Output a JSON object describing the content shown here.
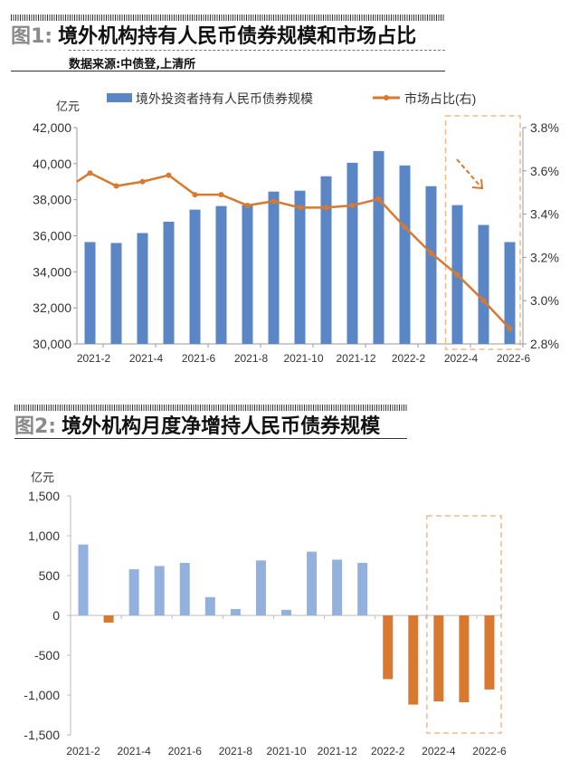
{
  "figure1": {
    "label": "图1:",
    "title": "境外机构持有人民币债券规模和市场占比",
    "source": "数据来源:中债登,上清所"
  },
  "figure2": {
    "label": "图2:",
    "title": "境外机构月度净增持人民币债券规模"
  },
  "colors": {
    "bar_blue": "#5b86c5",
    "line_orange": "#d9782f",
    "bar_light_blue": "#92b1dc",
    "bar_orange": "#d9782f",
    "highlight_box": "#f2b98a"
  },
  "chart_data": [
    {
      "type": "bar+line",
      "title": "境外机构持有人民币债券规模和市场占比",
      "ylabel": "亿元",
      "categories": [
        "2021-2",
        "2021-3",
        "2021-4",
        "2021-5",
        "2021-6",
        "2021-7",
        "2021-8",
        "2021-9",
        "2021-10",
        "2021-11",
        "2021-12",
        "2022-1",
        "2022-2",
        "2022-3",
        "2022-4",
        "2022-5",
        "2022-6"
      ],
      "xtick_labels": [
        "2021-2",
        "2021-4",
        "2021-6",
        "2021-8",
        "2021-10",
        "2021-12",
        "2022-2",
        "2022-4",
        "2022-6"
      ],
      "ylim": [
        30000,
        42000
      ],
      "yticks": [
        "30,000",
        "32,000",
        "34,000",
        "36,000",
        "38,000",
        "40,000",
        "42,000"
      ],
      "y2lim": [
        2.8,
        3.8
      ],
      "y2ticks": [
        "2.8%",
        "3.0%",
        "3.2%",
        "3.4%",
        "3.6%",
        "3.8%"
      ],
      "series": [
        {
          "name": "境外投资者持有人民币债券规模",
          "type": "bar",
          "axis": "left",
          "values": [
            35650,
            35600,
            36150,
            36780,
            37450,
            37650,
            37700,
            38450,
            38500,
            39300,
            40050,
            40700,
            39900,
            38750,
            37700,
            36600,
            35650
          ]
        },
        {
          "name": "市场占比(右)",
          "type": "line",
          "axis": "right",
          "values": [
            3.59,
            3.53,
            3.55,
            3.58,
            3.49,
            3.49,
            3.44,
            3.46,
            3.43,
            3.43,
            3.44,
            3.47,
            3.34,
            3.22,
            3.12,
            3.0,
            2.87
          ]
        }
      ],
      "legend": "top",
      "highlight": [
        "2022-4",
        "2022-6"
      ]
    },
    {
      "type": "bar",
      "title": "境外机构月度净增持人民币债券规模",
      "ylabel": "亿元",
      "categories": [
        "2021-2",
        "2021-3",
        "2021-4",
        "2021-5",
        "2021-6",
        "2021-7",
        "2021-8",
        "2021-9",
        "2021-10",
        "2021-11",
        "2021-12",
        "2022-1",
        "2022-2",
        "2022-3",
        "2022-4",
        "2022-5",
        "2022-6"
      ],
      "xtick_labels": [
        "2021-2",
        "2021-4",
        "2021-6",
        "2021-8",
        "2021-10",
        "2021-12",
        "2022-2",
        "2022-4",
        "2022-6"
      ],
      "ylim": [
        -1500,
        1500
      ],
      "yticks": [
        "-1,500",
        "-1,000",
        "-500",
        "0",
        "500",
        "1,000",
        "1,500"
      ],
      "values": [
        890,
        -90,
        580,
        620,
        660,
        230,
        80,
        690,
        70,
        800,
        700,
        660,
        -800,
        -1120,
        -1080,
        -1090,
        -930
      ],
      "highlight": [
        "2022-4",
        "2022-6"
      ]
    }
  ]
}
